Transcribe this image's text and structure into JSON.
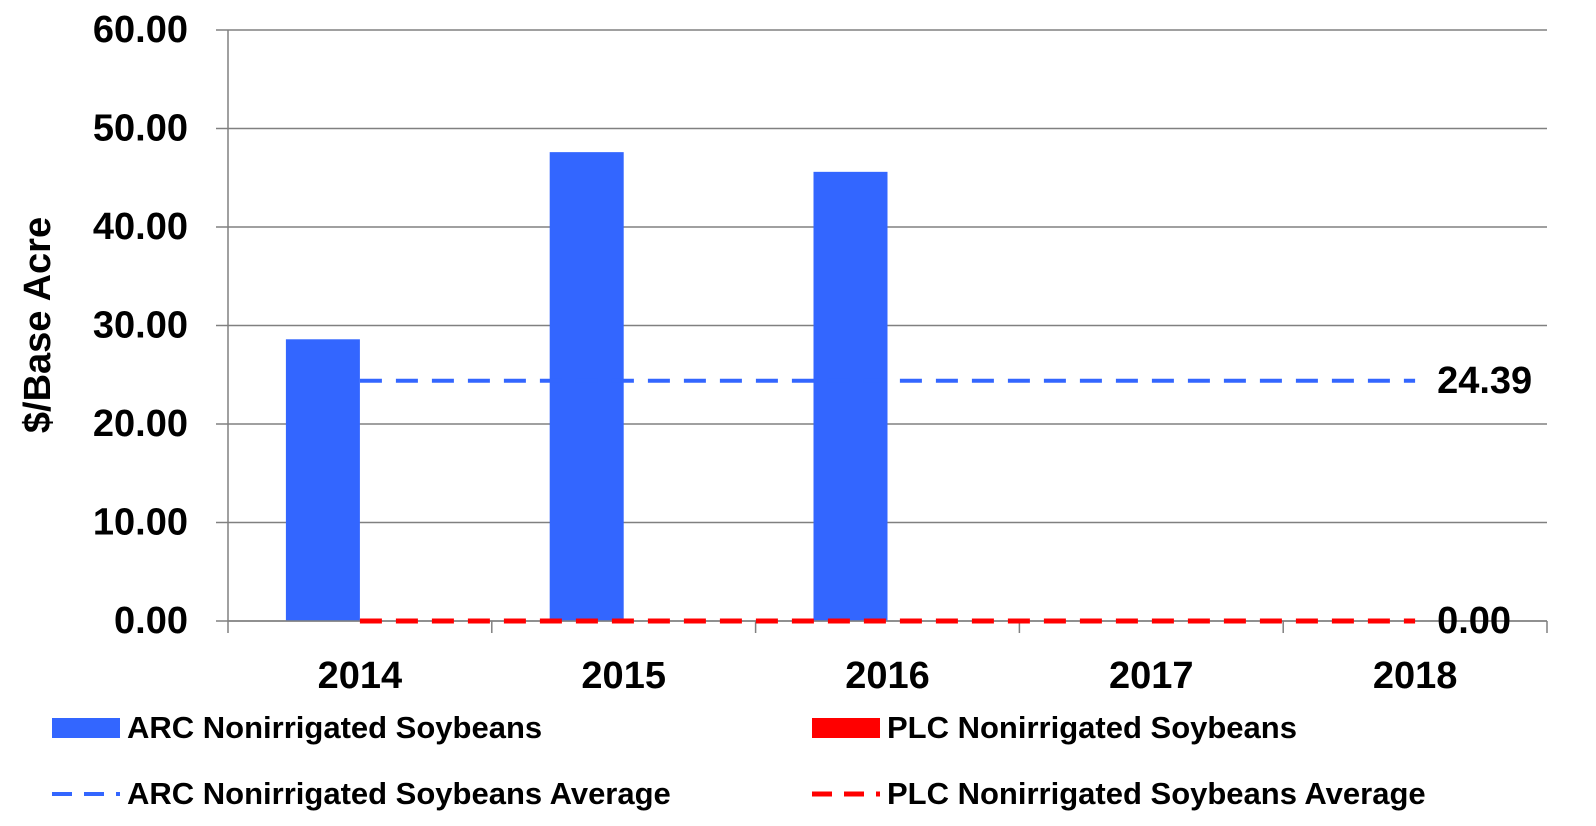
{
  "chart_data": {
    "type": "bar",
    "y_label": "$/Base Acre",
    "categories": [
      "2014",
      "2015",
      "2016",
      "2017",
      "2018"
    ],
    "series": [
      {
        "name": "ARC Nonirrigated Soybeans",
        "color": "#3366ff",
        "values": [
          28.6,
          47.6,
          45.6,
          null,
          null
        ]
      },
      {
        "name": "PLC Nonirrigated Soybeans",
        "color": "#ff0000",
        "values": [
          0,
          0,
          0,
          0,
          0
        ]
      }
    ],
    "averages": [
      {
        "name": "ARC Nonirrigated Soybeans Average",
        "color": "#3366ff",
        "value": 24.39
      },
      {
        "name": "PLC Nonirrigated Soybeans Average",
        "color": "#ff0000",
        "value": 0,
        "value_label": "0.00"
      }
    ],
    "ylim": [
      0,
      60
    ],
    "yticks": [
      {
        "value": 0,
        "label": "0.00"
      },
      {
        "value": 10,
        "label": "10.00"
      },
      {
        "value": 20,
        "label": "20.00"
      },
      {
        "value": 30,
        "label": "30.00"
      },
      {
        "value": 40,
        "label": "40.00"
      },
      {
        "value": 50,
        "label": "50.00"
      },
      {
        "value": 60,
        "label": "60.00"
      }
    ],
    "grid": true
  }
}
